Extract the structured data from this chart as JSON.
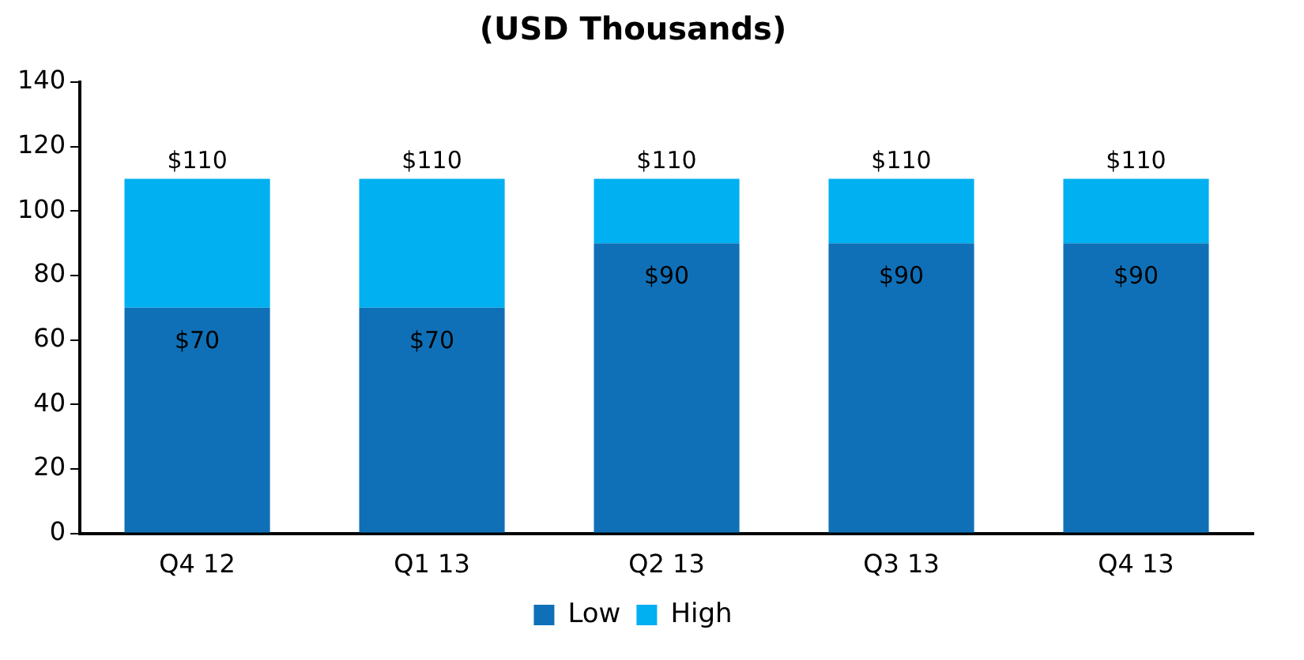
{
  "chart_data": {
    "type": "bar",
    "title": "(USD Thousands)",
    "stacked": true,
    "categories": [
      "Q4 12",
      "Q1 13",
      "Q2 13",
      "Q3 13",
      "Q4 13"
    ],
    "series": [
      {
        "name": "Low",
        "color": "#0f70b7",
        "values": [
          70,
          70,
          90,
          90,
          90
        ],
        "value_labels": [
          "$70",
          "$70",
          "$90",
          "$90",
          "$90"
        ]
      },
      {
        "name": "High",
        "color": "#00b0f0",
        "values": [
          40,
          40,
          20,
          20,
          20
        ]
      }
    ],
    "totals": [
      "$110",
      "$110",
      "$110",
      "$110",
      "$110"
    ],
    "ylim": [
      0,
      140
    ],
    "yticks": [
      0,
      20,
      40,
      60,
      80,
      100,
      120,
      140
    ],
    "grid": false,
    "legend": "bottom"
  }
}
